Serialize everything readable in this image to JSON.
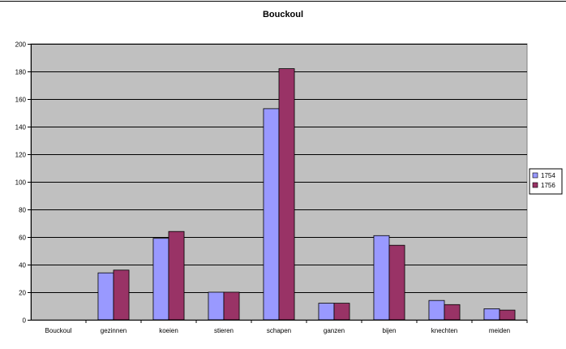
{
  "chart_data": {
    "type": "bar",
    "title": "Bouckoul",
    "xlabel": "",
    "ylabel": "",
    "categories": [
      "Bouckoul",
      "gezinnen",
      "koeien",
      "stieren",
      "schapen",
      "ganzen",
      "bijen",
      "knechten",
      "meiden"
    ],
    "series": [
      {
        "name": "1754",
        "color": "#9999ff",
        "values": [
          0,
          34,
          59,
          20,
          153,
          12,
          61,
          14,
          8
        ]
      },
      {
        "name": "1756",
        "color": "#993366",
        "values": [
          0,
          36,
          64,
          20,
          182,
          12,
          54,
          11,
          7
        ]
      }
    ],
    "ylim": [
      0,
      200
    ],
    "yticks": [
      0,
      20,
      40,
      60,
      80,
      100,
      120,
      140,
      160,
      180,
      200
    ],
    "grid": true,
    "legend_position": "right",
    "plot_background": "#c0c0c0"
  }
}
